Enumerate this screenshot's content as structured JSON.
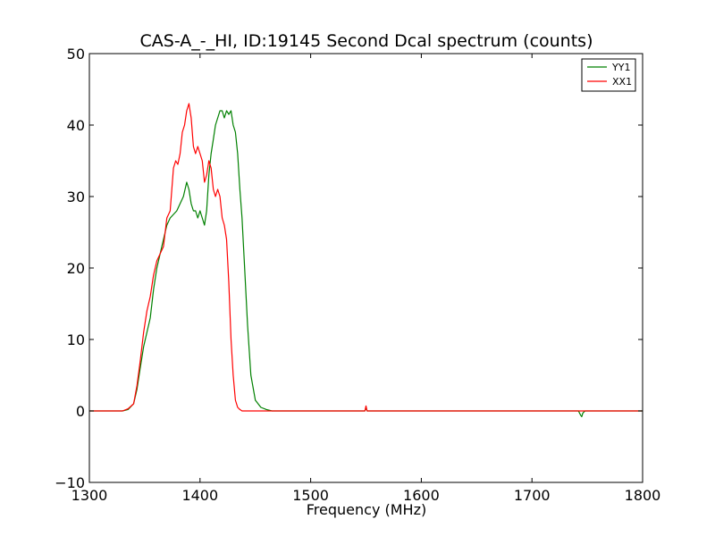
{
  "chart_data": {
    "type": "line",
    "title": "CAS-A_-_HI, ID:19145 Second Dcal spectrum (counts)",
    "xlabel": "Frequency (MHz)",
    "ylabel": "",
    "xlim": [
      1300,
      1800
    ],
    "ylim": [
      -10,
      50
    ],
    "xticks": [
      1300,
      1400,
      1500,
      1600,
      1700,
      1800
    ],
    "yticks": [
      -10,
      0,
      10,
      20,
      30,
      40,
      50
    ],
    "xtick_labels": [
      "1300",
      "1400",
      "1500",
      "1600",
      "1700",
      "1800"
    ],
    "ytick_labels": [
      "−10",
      "0",
      "10",
      "20",
      "30",
      "40",
      "50"
    ],
    "grid": false,
    "legend_position": "top-right",
    "series": [
      {
        "name": "YY1",
        "color": "#008000",
        "x": [
          1300,
          1330,
          1335,
          1340,
          1343,
          1346,
          1349,
          1352,
          1355,
          1358,
          1361,
          1364,
          1367,
          1370,
          1373,
          1376,
          1379,
          1382,
          1385,
          1388,
          1390,
          1392,
          1394,
          1396,
          1398,
          1400,
          1402,
          1404,
          1406,
          1408,
          1410,
          1412,
          1414,
          1416,
          1418,
          1420,
          1422,
          1424,
          1426,
          1428,
          1430,
          1432,
          1434,
          1436,
          1438,
          1440,
          1443,
          1446,
          1450,
          1455,
          1460,
          1465,
          1470,
          1500,
          1549,
          1550,
          1551,
          1600,
          1700,
          1742,
          1744,
          1745,
          1746,
          1748,
          1750,
          1800
        ],
        "y": [
          0,
          0,
          0.2,
          1,
          3,
          6,
          9,
          11,
          13,
          17,
          20,
          22,
          24,
          26,
          27,
          27.5,
          28,
          29,
          30,
          32,
          31,
          29,
          28,
          28,
          27,
          28,
          27,
          26,
          28,
          33,
          36,
          38,
          40,
          41,
          42,
          42,
          41,
          42,
          41.5,
          42,
          40,
          39,
          36,
          31,
          27,
          21,
          12,
          5,
          1.5,
          0.5,
          0.2,
          0,
          0,
          0,
          0,
          0.5,
          0,
          0,
          0,
          0,
          -0.6,
          -0.8,
          -0.3,
          0,
          0,
          0
        ]
      },
      {
        "name": "XX1",
        "color": "#ff0000",
        "x": [
          1300,
          1330,
          1335,
          1340,
          1343,
          1346,
          1349,
          1352,
          1355,
          1358,
          1361,
          1364,
          1367,
          1370,
          1373,
          1376,
          1378,
          1380,
          1382,
          1384,
          1386,
          1388,
          1390,
          1392,
          1394,
          1396,
          1398,
          1400,
          1402,
          1404,
          1406,
          1408,
          1410,
          1412,
          1414,
          1416,
          1418,
          1420,
          1422,
          1424,
          1426,
          1428,
          1430,
          1432,
          1434,
          1436,
          1438,
          1440,
          1443,
          1446,
          1450,
          1455,
          1460,
          1465,
          1470,
          1500,
          1549,
          1550,
          1551,
          1600,
          1700,
          1800
        ],
        "y": [
          0,
          0,
          0.3,
          1,
          3.5,
          7,
          11,
          14,
          16,
          19,
          21,
          22,
          23,
          27,
          28,
          34,
          35,
          34.5,
          36,
          39,
          40,
          42,
          43,
          41,
          37,
          36,
          37,
          36,
          35,
          32,
          33,
          35,
          34,
          31,
          30,
          31,
          30,
          27,
          26,
          24,
          18,
          10,
          5,
          1.5,
          0.5,
          0.2,
          0,
          0,
          0,
          0,
          0,
          0,
          0,
          0,
          0,
          0,
          0,
          0.7,
          0,
          0,
          0,
          0
        ]
      }
    ]
  }
}
